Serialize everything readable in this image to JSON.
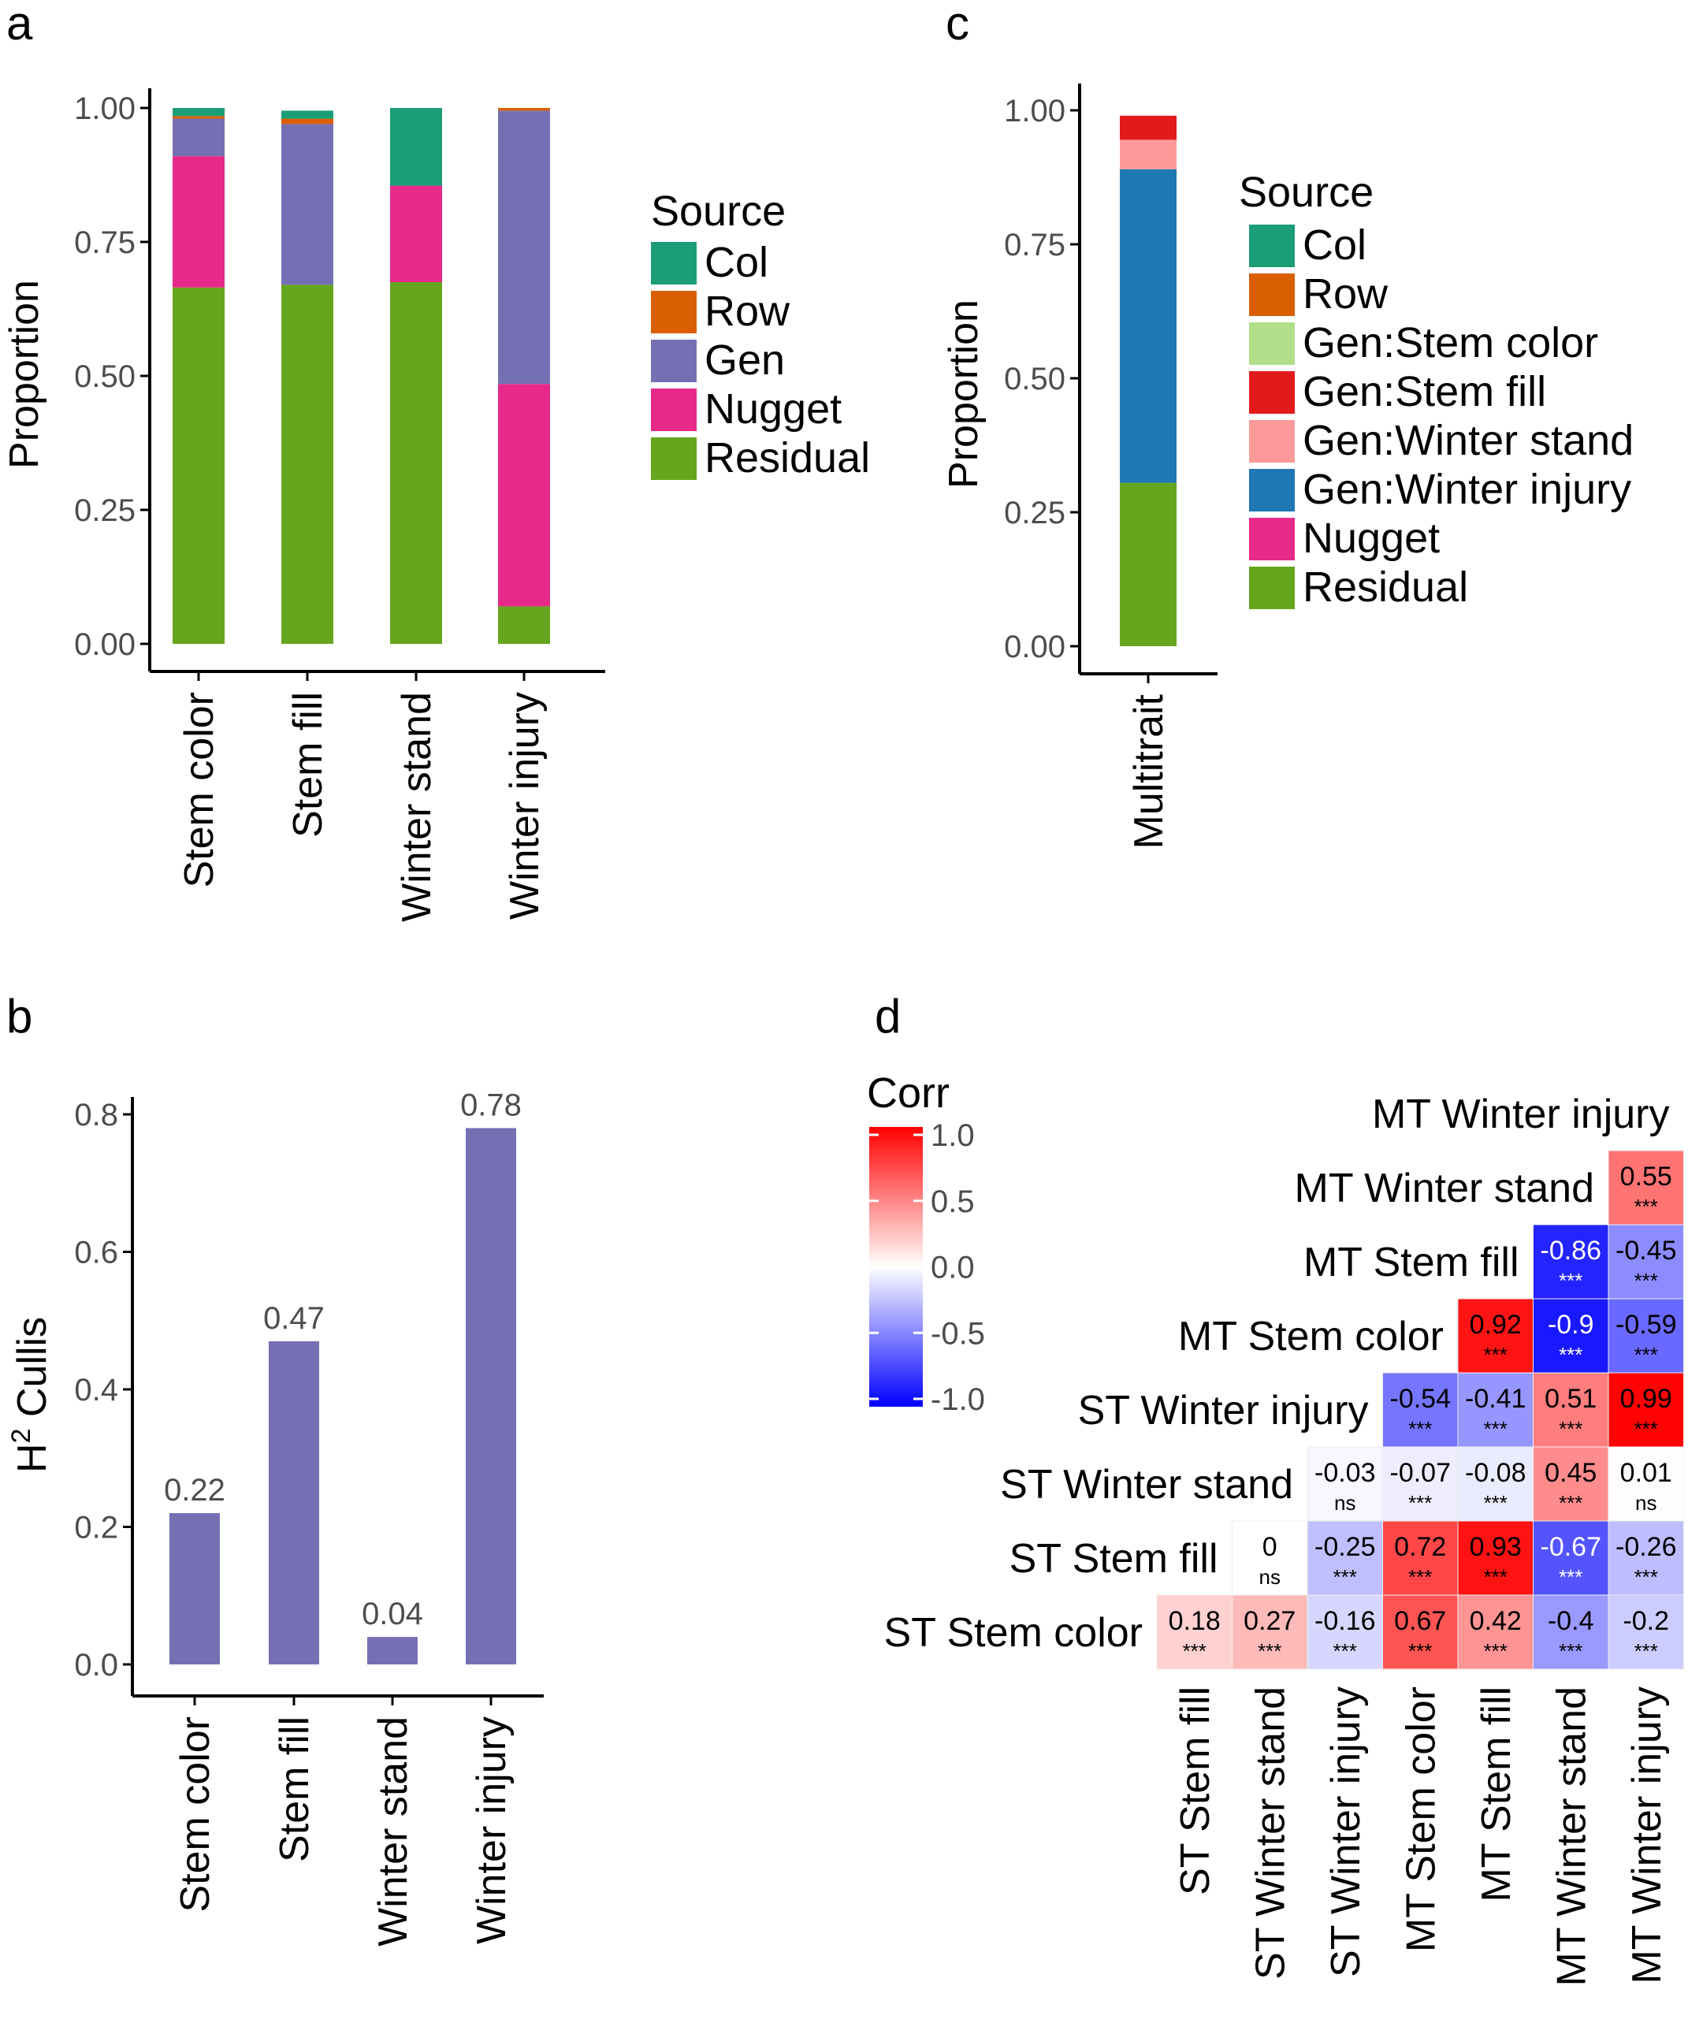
{
  "colors": {
    "Col": "#1b9e77",
    "Row": "#d95f02",
    "Gen": "#7570b3",
    "Nugget": "#e7298a",
    "Residual": "#66a61e",
    "Gen:Stem color": "#b2df8a",
    "Gen:Stem fill": "#e31a1c",
    "Gen:Winter stand": "#fb9a99",
    "Gen:Winter injury": "#1f78b4",
    "bar_b": "#7570b3",
    "axis": "#000000",
    "tick_text": "#4d4d4d"
  },
  "chart_data": [
    {
      "panel": "a",
      "type": "bar",
      "stacked": true,
      "ylabel": "Proportion",
      "ylim": [
        0,
        1
      ],
      "yticks": [
        "0.00",
        "0.25",
        "0.50",
        "0.75",
        "1.00"
      ],
      "categories": [
        "Stem color",
        "Stem fill",
        "Winter stand",
        "Winter injury"
      ],
      "legend_title": "Source",
      "series": [
        {
          "name": "Residual",
          "values": [
            0.665,
            0.67,
            0.675,
            0.07
          ]
        },
        {
          "name": "Nugget",
          "values": [
            0.245,
            0.0,
            0.18,
            0.415
          ]
        },
        {
          "name": "Gen",
          "values": [
            0.07,
            0.3,
            0.0,
            0.51
          ]
        },
        {
          "name": "Row",
          "values": [
            0.005,
            0.01,
            0.0,
            0.005
          ]
        },
        {
          "name": "Col",
          "values": [
            0.015,
            0.015,
            0.145,
            0.0
          ]
        }
      ],
      "legend_order": [
        "Col",
        "Row",
        "Gen",
        "Nugget",
        "Residual"
      ]
    },
    {
      "panel": "b",
      "type": "bar",
      "ylabel_prefix": "H",
      "ylabel_sup": "2",
      "ylabel_suffix": " Cullis",
      "ylim": [
        0,
        0.8
      ],
      "yticks": [
        "0.0",
        "0.2",
        "0.4",
        "0.6",
        "0.8"
      ],
      "categories": [
        "Stem color",
        "Stem fill",
        "Winter stand",
        "Winter injury"
      ],
      "values": [
        0.22,
        0.47,
        0.04,
        0.78
      ],
      "data_labels": [
        "0.22",
        "0.47",
        "0.04",
        "0.78"
      ]
    },
    {
      "panel": "c",
      "type": "bar",
      "stacked": true,
      "ylabel": "Proportion",
      "ylim": [
        0,
        1
      ],
      "yticks": [
        "0.00",
        "0.25",
        "0.50",
        "0.75",
        "1.00"
      ],
      "categories": [
        "Multitrait"
      ],
      "legend_title": "Source",
      "series": [
        {
          "name": "Residual",
          "values": [
            0.305
          ]
        },
        {
          "name": "Nugget",
          "values": [
            0.0
          ]
        },
        {
          "name": "Gen:Winter injury",
          "values": [
            0.585
          ]
        },
        {
          "name": "Gen:Winter stand",
          "values": [
            0.055
          ]
        },
        {
          "name": "Gen:Stem fill",
          "values": [
            0.045
          ]
        },
        {
          "name": "Gen:Stem color",
          "values": [
            0.0
          ]
        },
        {
          "name": "Row",
          "values": [
            0.0
          ]
        },
        {
          "name": "Col",
          "values": [
            0.0
          ]
        }
      ],
      "legend_order": [
        "Col",
        "Row",
        "Gen:Stem color",
        "Gen:Stem fill",
        "Gen:Winter stand",
        "Gen:Winter injury",
        "Nugget",
        "Residual"
      ]
    },
    {
      "panel": "d",
      "type": "heatmap",
      "legend_title": "Corr",
      "legend_ticks": [
        "1.0",
        "0.5",
        "0.0",
        "-0.5",
        "-1.0"
      ],
      "labels": [
        "ST Stem color",
        "ST Stem fill",
        "ST Winter stand",
        "ST Winter injury",
        "MT Stem color",
        "MT Stem fill",
        "MT Winter stand",
        "MT Winter injury"
      ],
      "cells": [
        {
          "row": 0,
          "col": 1,
          "value": 0.18,
          "label": "0.18",
          "sig": "***"
        },
        {
          "row": 0,
          "col": 2,
          "value": 0.27,
          "label": "0.27",
          "sig": "***"
        },
        {
          "row": 0,
          "col": 3,
          "value": -0.16,
          "label": "-0.16",
          "sig": "***"
        },
        {
          "row": 0,
          "col": 4,
          "value": 0.67,
          "label": "0.67",
          "sig": "***"
        },
        {
          "row": 0,
          "col": 5,
          "value": 0.42,
          "label": "0.42",
          "sig": "***"
        },
        {
          "row": 0,
          "col": 6,
          "value": -0.4,
          "label": "-0.4",
          "sig": "***"
        },
        {
          "row": 0,
          "col": 7,
          "value": -0.2,
          "label": "-0.2",
          "sig": "***"
        },
        {
          "row": 1,
          "col": 2,
          "value": 0.0,
          "label": "0",
          "sig": "ns"
        },
        {
          "row": 1,
          "col": 3,
          "value": -0.25,
          "label": "-0.25",
          "sig": "***"
        },
        {
          "row": 1,
          "col": 4,
          "value": 0.72,
          "label": "0.72",
          "sig": "***"
        },
        {
          "row": 1,
          "col": 5,
          "value": 0.93,
          "label": "0.93",
          "sig": "***"
        },
        {
          "row": 1,
          "col": 6,
          "value": -0.67,
          "label": "-0.67",
          "sig": "***"
        },
        {
          "row": 1,
          "col": 7,
          "value": -0.26,
          "label": "-0.26",
          "sig": "***"
        },
        {
          "row": 2,
          "col": 3,
          "value": -0.03,
          "label": "-0.03",
          "sig": "ns"
        },
        {
          "row": 2,
          "col": 4,
          "value": -0.07,
          "label": "-0.07",
          "sig": "***"
        },
        {
          "row": 2,
          "col": 5,
          "value": -0.08,
          "label": "-0.08",
          "sig": "***"
        },
        {
          "row": 2,
          "col": 6,
          "value": 0.45,
          "label": "0.45",
          "sig": "***"
        },
        {
          "row": 2,
          "col": 7,
          "value": 0.01,
          "label": "0.01",
          "sig": "ns"
        },
        {
          "row": 3,
          "col": 4,
          "value": -0.54,
          "label": "-0.54",
          "sig": "***"
        },
        {
          "row": 3,
          "col": 5,
          "value": -0.41,
          "label": "-0.41",
          "sig": "***"
        },
        {
          "row": 3,
          "col": 6,
          "value": 0.51,
          "label": "0.51",
          "sig": "***"
        },
        {
          "row": 3,
          "col": 7,
          "value": 0.99,
          "label": "0.99",
          "sig": "***"
        },
        {
          "row": 4,
          "col": 5,
          "value": 0.92,
          "label": "0.92",
          "sig": "***"
        },
        {
          "row": 4,
          "col": 6,
          "value": -0.9,
          "label": "-0.9",
          "sig": "***"
        },
        {
          "row": 4,
          "col": 7,
          "value": -0.59,
          "label": "-0.59",
          "sig": "***"
        },
        {
          "row": 5,
          "col": 6,
          "value": -0.86,
          "label": "-0.86",
          "sig": "***"
        },
        {
          "row": 5,
          "col": 7,
          "value": -0.45,
          "label": "-0.45",
          "sig": "***"
        },
        {
          "row": 6,
          "col": 7,
          "value": 0.55,
          "label": "0.55",
          "sig": "***"
        }
      ]
    }
  ],
  "panel_labels": {
    "a": "a",
    "b": "b",
    "c": "c",
    "d": "d"
  }
}
